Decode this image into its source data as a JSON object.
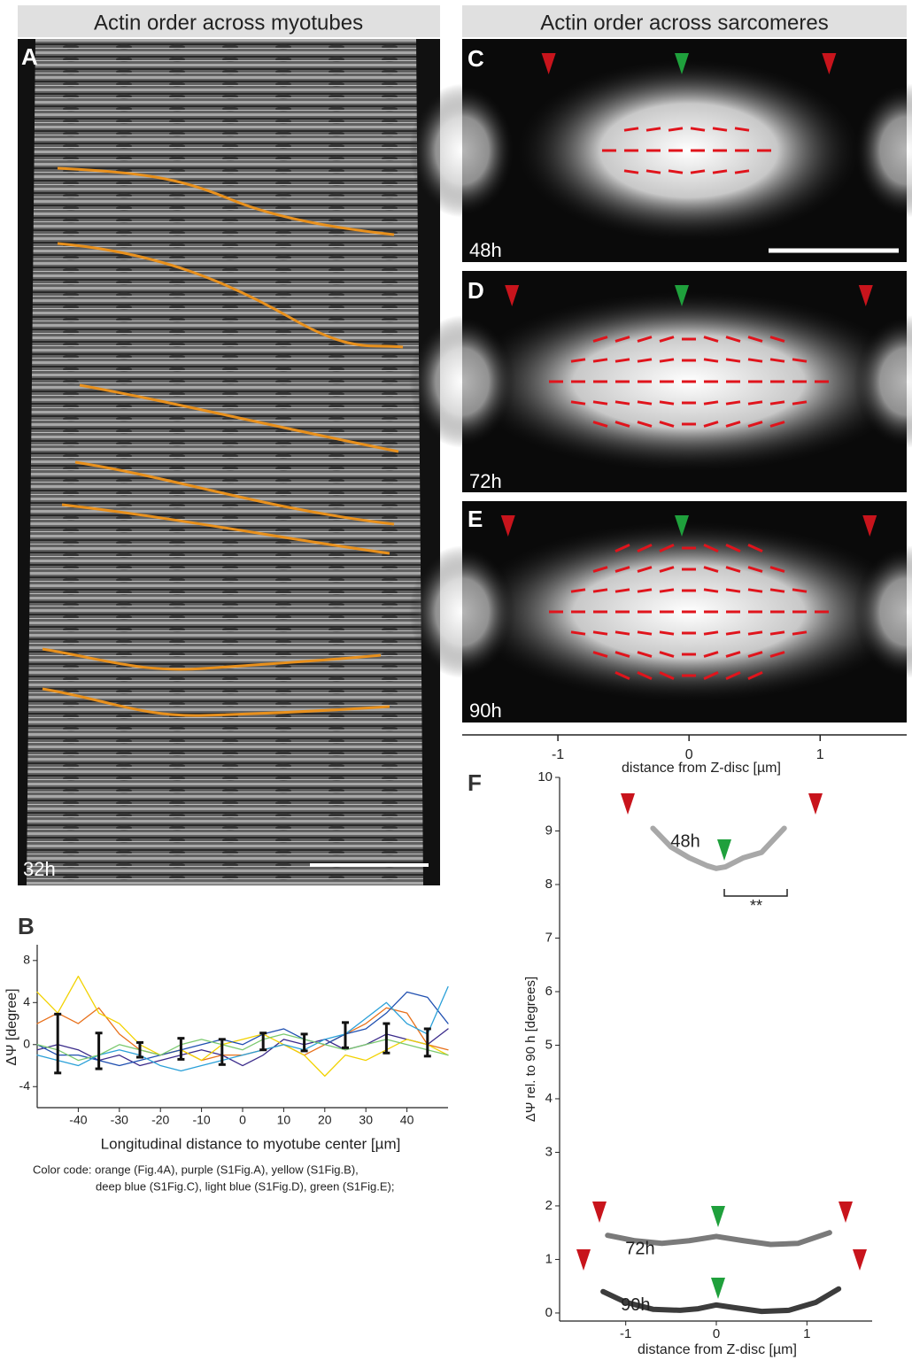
{
  "headers": [
    "Actin order across myotubes",
    "Actin order across sarcomeres"
  ],
  "panels": [
    {
      "letter": "A",
      "label": "32h"
    },
    {
      "letter": "C",
      "label": "48h"
    },
    {
      "letter": "D",
      "label": "72h"
    },
    {
      "letter": "E",
      "label": "90h"
    }
  ],
  "sarcomere_axis": {
    "xlim": [
      -1.73,
      1.66
    ],
    "xticks": [
      -1,
      0,
      1
    ],
    "xlabel": "distance from Z-disc [µm]"
  },
  "chart_data": [
    {
      "type": "line",
      "letter": "B",
      "xlabel": "Longitudinal distance to myotube center [µm]",
      "ylabel": "ΔΨ [degree]",
      "xlim": [
        -50,
        50
      ],
      "ylim": [
        -6,
        9.5
      ],
      "xticks": [
        -40,
        -30,
        -20,
        -10,
        0,
        10,
        20,
        30,
        40
      ],
      "yticks": [
        -4,
        0,
        4,
        8
      ],
      "x": [
        -50,
        -45,
        -40,
        -35,
        -30,
        -25,
        -20,
        -15,
        -10,
        -5,
        0,
        5,
        10,
        15,
        20,
        25,
        30,
        35,
        40,
        45,
        50
      ],
      "series": [
        {
          "color": "#e8701a",
          "values": [
            2,
            3,
            2,
            3.5,
            1,
            -0.5,
            -1,
            -0.5,
            -1.5,
            -1,
            -1,
            -0.5,
            0,
            -1,
            0,
            1,
            2,
            3.5,
            3,
            0,
            -0.5
          ]
        },
        {
          "color": "#3a2a8a",
          "values": [
            -0.5,
            0,
            -0.5,
            -1.5,
            -1,
            -2,
            -1.5,
            -1,
            -0.5,
            -1,
            -2,
            -1,
            0.5,
            0,
            0.5,
            -0.5,
            0,
            1,
            0.5,
            0,
            1.5
          ]
        },
        {
          "color": "#f2d200",
          "values": [
            5,
            3,
            6.5,
            3,
            2,
            0,
            -1,
            -0.5,
            -1.5,
            0,
            0.5,
            1,
            0,
            -1,
            -3,
            -1,
            -1.5,
            -0.5,
            0.5,
            0,
            -1
          ]
        },
        {
          "color": "#1f4fb0",
          "values": [
            0,
            -1,
            -1,
            -1.5,
            -2,
            -1.5,
            -1,
            -0.5,
            0,
            0.5,
            0,
            1,
            1.5,
            0.5,
            0,
            1,
            1.5,
            3,
            5,
            4.5,
            2
          ]
        },
        {
          "color": "#2aa0d8",
          "values": [
            -1,
            -1.5,
            -2,
            -1,
            -0.5,
            -1,
            -2,
            -2.5,
            -2,
            -1.5,
            -1,
            -0.5,
            0,
            -0.5,
            0.5,
            1,
            2.5,
            4,
            2,
            1,
            5.5
          ]
        },
        {
          "color": "#7bc96f",
          "values": [
            0,
            -0.5,
            -1.5,
            -1,
            0,
            -0.5,
            -1,
            0,
            0.5,
            0,
            -0.5,
            0.5,
            1,
            0.5,
            0,
            -0.5,
            0,
            0.5,
            0,
            -0.5,
            -1
          ]
        }
      ],
      "error_bars": {
        "color": "#111111",
        "x": [
          -45,
          -35,
          -25,
          -15,
          -5,
          5,
          15,
          25,
          35,
          45
        ],
        "values": [
          0.1,
          -0.6,
          -0.5,
          -0.4,
          -0.7,
          0.3,
          0.2,
          0.9,
          0.6,
          0.2
        ],
        "errors": [
          2.8,
          1.7,
          0.7,
          1.0,
          1.2,
          0.8,
          0.8,
          1.2,
          1.4,
          1.3
        ]
      },
      "caption": [
        "Color code: orange (Fig.4A), purple (S1Fig.A), yellow (S1Fig.B),",
        "deep blue (S1Fig.C), light blue (S1Fig.D), green (S1Fig.E);"
      ]
    },
    {
      "type": "line",
      "letter": "F",
      "xlabel": "distance from Z-disc [µm]",
      "ylabel": "ΔΨ rel. to 90 h [degrees]",
      "xlim": [
        -1.73,
        1.72
      ],
      "ylim": [
        -0.15,
        10
      ],
      "xticks": [
        -1,
        0,
        1
      ],
      "yticks": [
        0,
        1,
        2,
        3,
        4,
        5,
        6,
        7,
        8,
        9,
        10
      ],
      "series": [
        {
          "name": "48h",
          "color": "#a8a8a8",
          "x": [
            -0.7,
            -0.5,
            -0.3,
            -0.1,
            0,
            0.1,
            0.3,
            0.5,
            0.75
          ],
          "values": [
            9.05,
            8.7,
            8.5,
            8.35,
            8.3,
            8.33,
            8.5,
            8.6,
            9.05
          ]
        },
        {
          "name": "72h",
          "color": "#7a7a7a",
          "x": [
            -1.2,
            -0.9,
            -0.6,
            -0.3,
            0,
            0.3,
            0.6,
            0.9,
            1.25
          ],
          "values": [
            1.45,
            1.35,
            1.3,
            1.35,
            1.43,
            1.35,
            1.28,
            1.3,
            1.5
          ]
        },
        {
          "name": "90h",
          "color": "#3c3c3c",
          "x": [
            -1.25,
            -1,
            -0.7,
            -0.4,
            -0.2,
            0,
            0.2,
            0.5,
            0.8,
            1.1,
            1.35
          ],
          "values": [
            0.4,
            0.2,
            0.07,
            0.05,
            0.08,
            0.15,
            0.1,
            0.03,
            0.05,
            0.2,
            0.45
          ]
        }
      ],
      "annotation": "**"
    }
  ]
}
